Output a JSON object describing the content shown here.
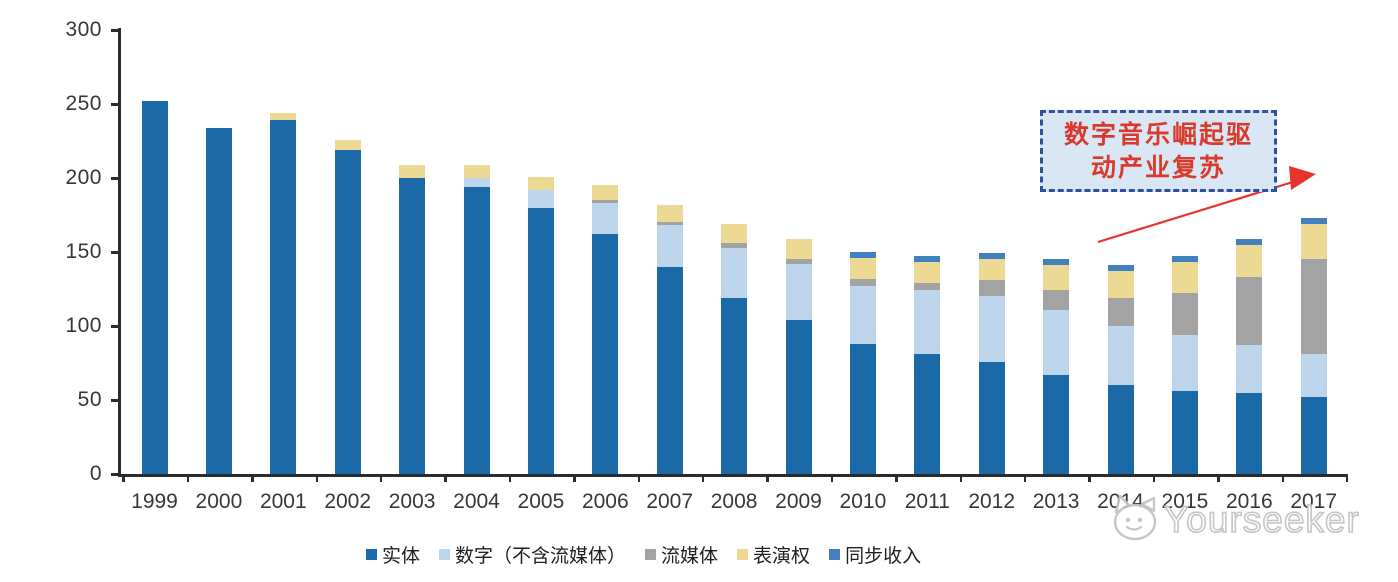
{
  "chart_data": {
    "type": "bar",
    "stacked": true,
    "categories": [
      "1999",
      "2000",
      "2001",
      "2002",
      "2003",
      "2004",
      "2005",
      "2006",
      "2007",
      "2008",
      "2009",
      "2010",
      "2011",
      "2012",
      "2013",
      "2014",
      "2015",
      "2016",
      "2017"
    ],
    "series": [
      {
        "name": "实体",
        "color": "#1c69a8",
        "values": [
          252,
          234,
          239,
          219,
          200,
          194,
          180,
          162,
          140,
          119,
          104,
          88,
          81,
          76,
          67,
          60,
          56,
          55,
          52
        ]
      },
      {
        "name": "数字（不含流媒体）",
        "color": "#bdd6ec",
        "values": [
          0,
          0,
          0,
          0,
          0,
          6,
          12,
          21,
          28,
          34,
          38,
          39,
          43,
          44,
          44,
          40,
          38,
          32,
          29
        ]
      },
      {
        "name": "流媒体",
        "color": "#a3a3a3",
        "values": [
          0,
          0,
          0,
          0,
          0,
          0,
          0,
          2,
          2,
          3,
          3,
          5,
          5,
          11,
          13,
          19,
          28,
          46,
          64
        ]
      },
      {
        "name": "表演权",
        "color": "#ebd994",
        "values": [
          0,
          0,
          5,
          7,
          9,
          9,
          9,
          10,
          12,
          13,
          14,
          14,
          14,
          14,
          17,
          18,
          21,
          22,
          24
        ]
      },
      {
        "name": "同步收入",
        "color": "#4181bf",
        "values": [
          0,
          0,
          0,
          0,
          0,
          0,
          0,
          0,
          0,
          0,
          0,
          4,
          4,
          4,
          4,
          4,
          4,
          4,
          4
        ]
      }
    ],
    "y_ticks": [
      0,
      50,
      100,
      150,
      200,
      250,
      300
    ],
    "ylim": [
      0,
      300
    ],
    "title": "",
    "xlabel": "",
    "ylabel": "",
    "grid": false,
    "legend_position": "bottom"
  },
  "annotation": {
    "line1": "数字音乐崛起驱",
    "line2": "动产业复苏",
    "text_color": "#d93a2e",
    "box_fill": "#d9e7f5",
    "box_border": "#31519f",
    "arrow_color": "#e5352c"
  },
  "watermark": {
    "text": "Yourseeker"
  }
}
